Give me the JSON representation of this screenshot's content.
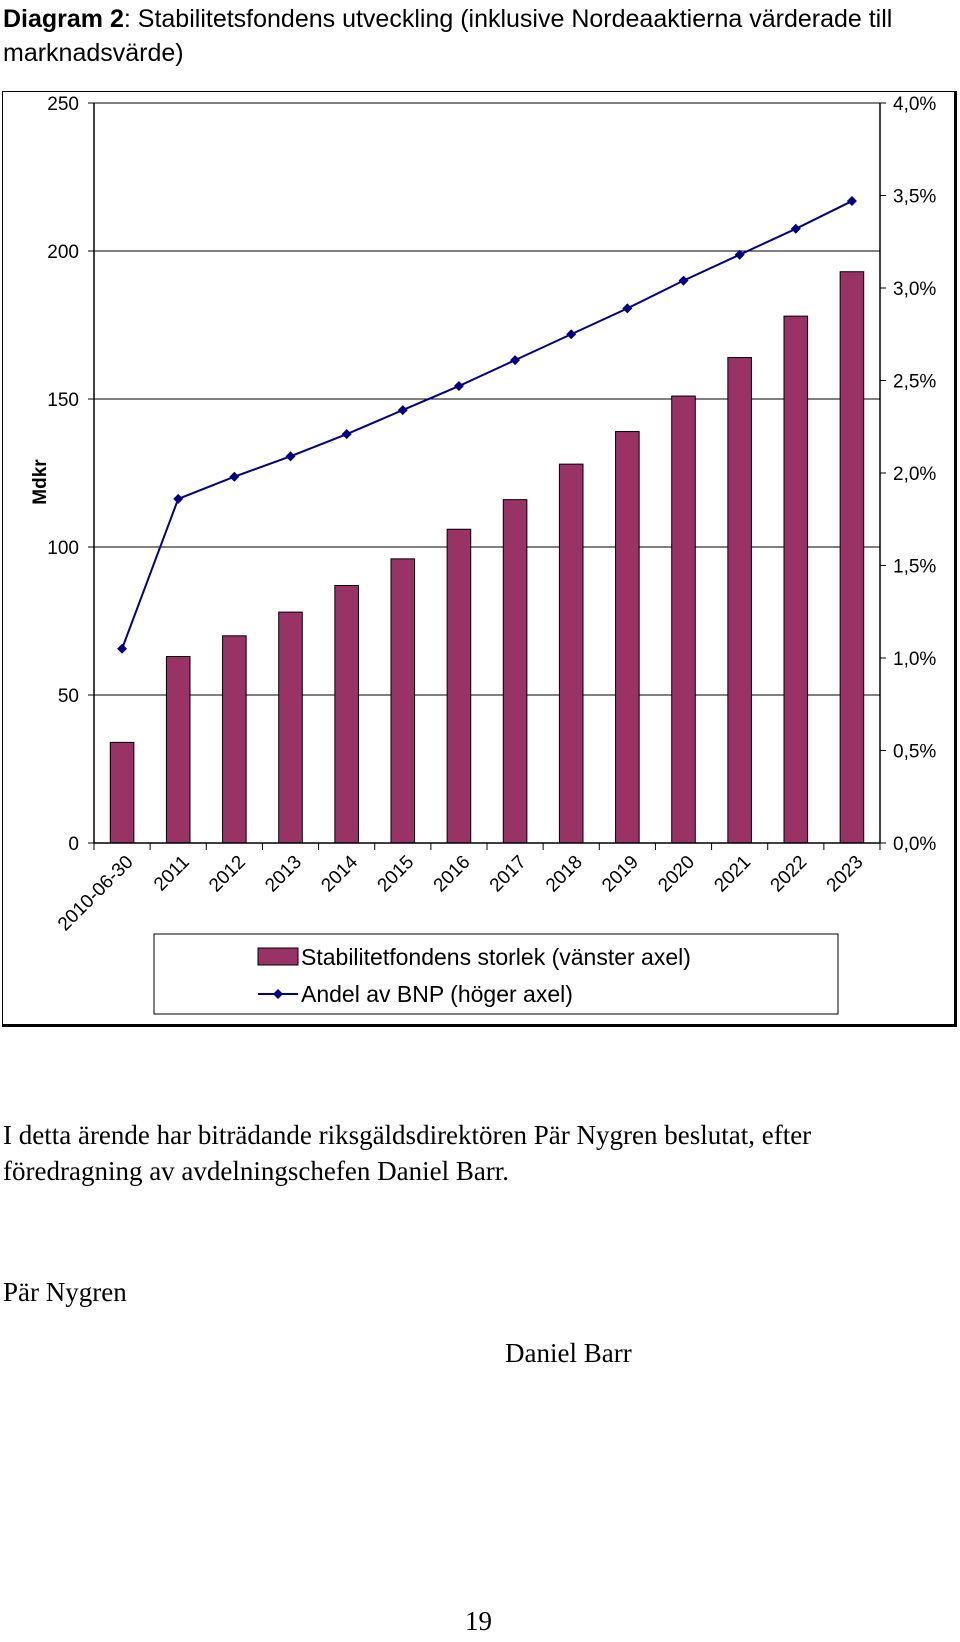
{
  "caption": {
    "label": "Diagram 2",
    "text": ": Stabilitetsfondens utveckling (inklusive Nordeaaktierna värderade till marknadsvärde)"
  },
  "chart_data": {
    "type": "bar",
    "categories": [
      "2010-06-30",
      "2011",
      "2012",
      "2013",
      "2014",
      "2015",
      "2016",
      "2017",
      "2018",
      "2019",
      "2020",
      "2021",
      "2022",
      "2023"
    ],
    "series": [
      {
        "name": "Stabilitetfondens storlek (vänster axel)",
        "type": "bar",
        "axis": "left",
        "color": "#993366",
        "values": [
          34,
          63,
          70,
          78,
          87,
          96,
          106,
          116,
          128,
          139,
          151,
          164,
          178,
          193
        ]
      },
      {
        "name": "Andel av BNP (höger axel)",
        "type": "line",
        "axis": "right",
        "color": "#000080",
        "values": [
          1.05,
          1.86,
          1.98,
          2.09,
          2.21,
          2.34,
          2.47,
          2.61,
          2.75,
          2.89,
          3.04,
          3.18,
          3.32,
          3.47
        ]
      }
    ],
    "ylabel": "Mdkr",
    "ylim": [
      0,
      250
    ],
    "yticks": [
      "0",
      "50",
      "100",
      "150",
      "200",
      "250"
    ],
    "y2lim": [
      0,
      4
    ],
    "y2ticks": [
      "0,0%",
      "0,5%",
      "1,0%",
      "1,5%",
      "2,0%",
      "2,5%",
      "3,0%",
      "3,5%",
      "4,0%"
    ],
    "grid": true,
    "legend": "bottom"
  },
  "body": {
    "paragraph": "I detta ärende har biträdande riksgäldsdirektören Pär Nygren beslutat, efter föredragning av avdelningschefen Daniel Barr.",
    "signature_left": "Pär Nygren",
    "signature_right": "Daniel Barr",
    "page_number": "19"
  }
}
